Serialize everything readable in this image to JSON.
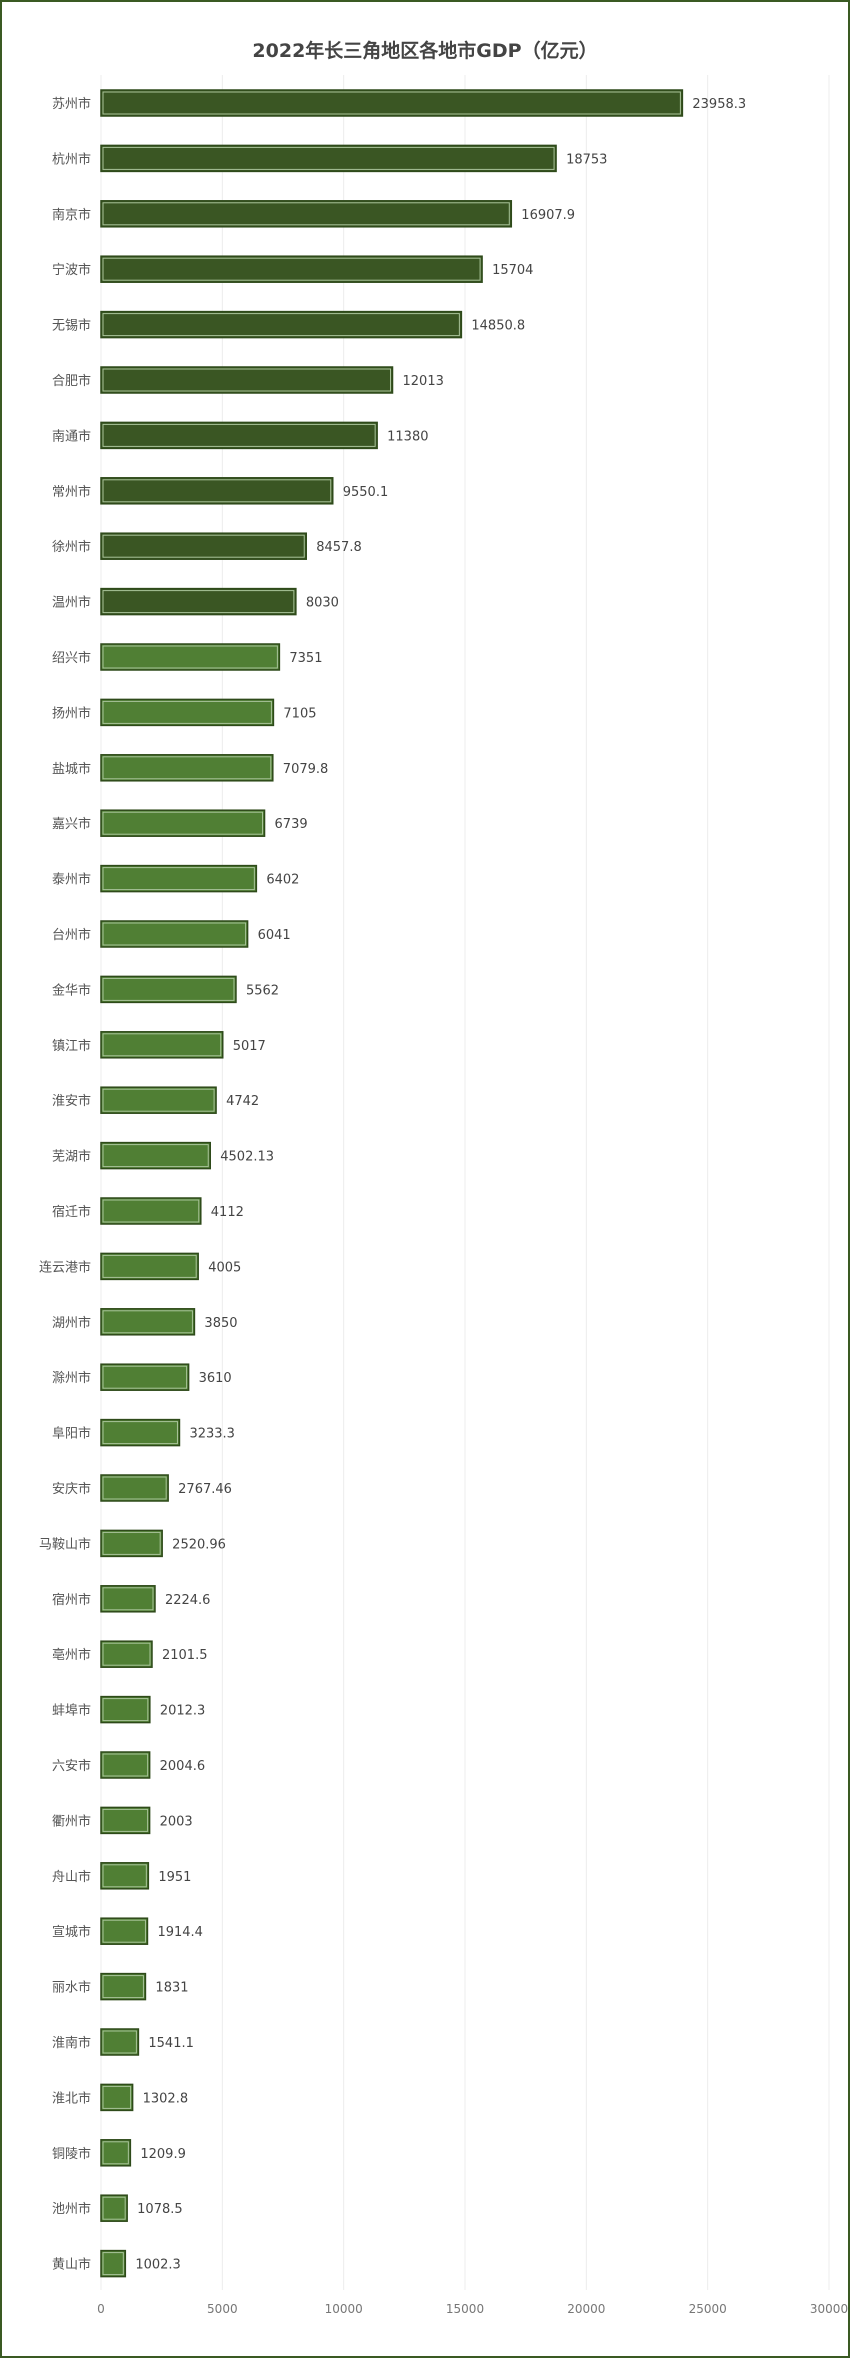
{
  "chart_data": {
    "type": "bar",
    "orientation": "horizontal",
    "title": "2022年长三角地区各地市GDP（亿元）",
    "xlim": [
      0,
      30000
    ],
    "xticks": [
      0,
      5000,
      10000,
      15000,
      20000,
      25000,
      30000
    ],
    "grid": "vertical",
    "colors": {
      "top10": "#3a5623",
      "rest": "#507f34"
    },
    "categories": [
      "苏州市",
      "杭州市",
      "南京市",
      "宁波市",
      "无锡市",
      "合肥市",
      "南通市",
      "常州市",
      "徐州市",
      "温州市",
      "绍兴市",
      "扬州市",
      "盐城市",
      "嘉兴市",
      "泰州市",
      "台州市",
      "金华市",
      "镇江市",
      "淮安市",
      "芜湖市",
      "宿迁市",
      "连云港市",
      "湖州市",
      "滁州市",
      "阜阳市",
      "安庆市",
      "马鞍山市",
      "宿州市",
      "亳州市",
      "蚌埠市",
      "六安市",
      "衢州市",
      "舟山市",
      "宣城市",
      "丽水市",
      "淮南市",
      "淮北市",
      "铜陵市",
      "池州市",
      "黄山市"
    ],
    "values": [
      23958.3,
      18753,
      16907.9,
      15704,
      14850.8,
      12013,
      11380,
      9550.1,
      8457.8,
      8030,
      7351,
      7105,
      7079.8,
      6739,
      6402,
      6041,
      5562,
      5017,
      4742,
      4502.13,
      4112,
      4005,
      3850,
      3610,
      3233.3,
      2767.46,
      2520.96,
      2224.6,
      2101.5,
      2012.3,
      2004.6,
      2003,
      1951,
      1914.4,
      1831,
      1541.1,
      1302.8,
      1209.9,
      1078.5,
      1002.3
    ]
  }
}
